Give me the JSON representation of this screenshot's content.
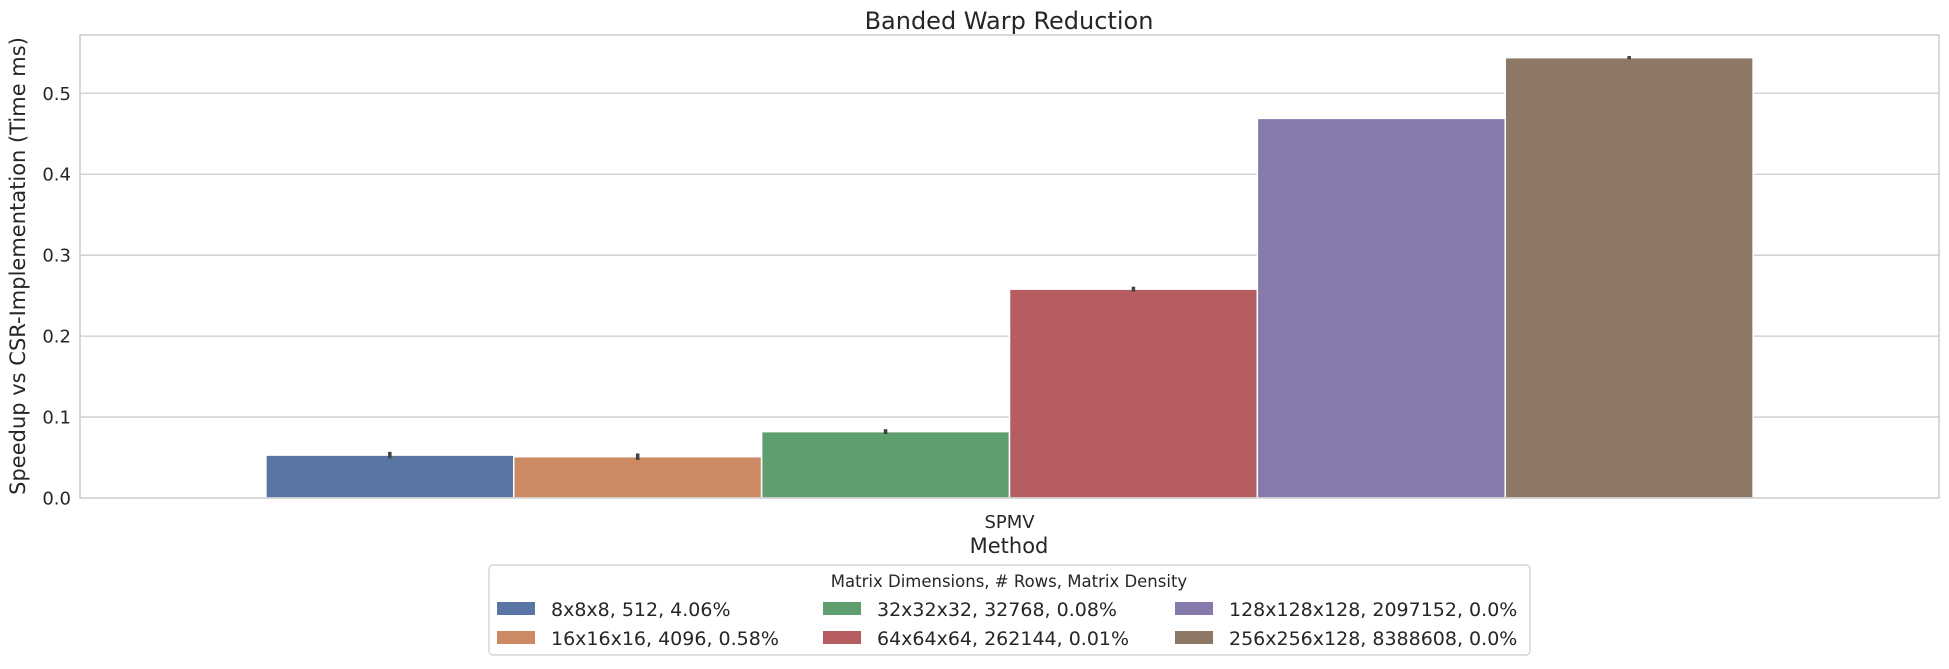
{
  "chart_data": {
    "type": "bar",
    "title": "Banded Warp Reduction",
    "xlabel": "Method",
    "ylabel": "Speedup vs CSR-Implementation (Time ms)",
    "categories": [
      "SPMV"
    ],
    "ylim": [
      0,
      0.572
    ],
    "yticks": [
      "0.0",
      "0.1",
      "0.2",
      "0.3",
      "0.4",
      "0.5"
    ],
    "grid": true,
    "legend": {
      "title": "Matrix Dimensions, # Rows, Matrix Density",
      "placement": "bottom-center",
      "columns": 3
    },
    "series": [
      {
        "name": "8x8x8, 512, 4.06%",
        "values": [
          0.053
        ],
        "error": [
          0.004
        ],
        "color": "#5875a4"
      },
      {
        "name": "16x16x16, 4096, 0.58%",
        "values": [
          0.051
        ],
        "error": [
          0.004
        ],
        "color": "#cc8963"
      },
      {
        "name": "32x32x32, 32768, 0.08%",
        "values": [
          0.082
        ],
        "error": [
          0.003
        ],
        "color": "#5f9e6e"
      },
      {
        "name": "64x64x64, 262144, 0.01%",
        "values": [
          0.258
        ],
        "error": [
          0.003
        ],
        "color": "#b55d60"
      },
      {
        "name": "128x128x128, 2097152, 0.0%",
        "values": [
          0.469
        ],
        "error": [
          0
        ],
        "color": "#857aab"
      },
      {
        "name": "256x256x128, 8388608, 0.0%",
        "values": [
          0.544
        ],
        "error": [
          0.002
        ],
        "color": "#8d7866"
      }
    ]
  }
}
